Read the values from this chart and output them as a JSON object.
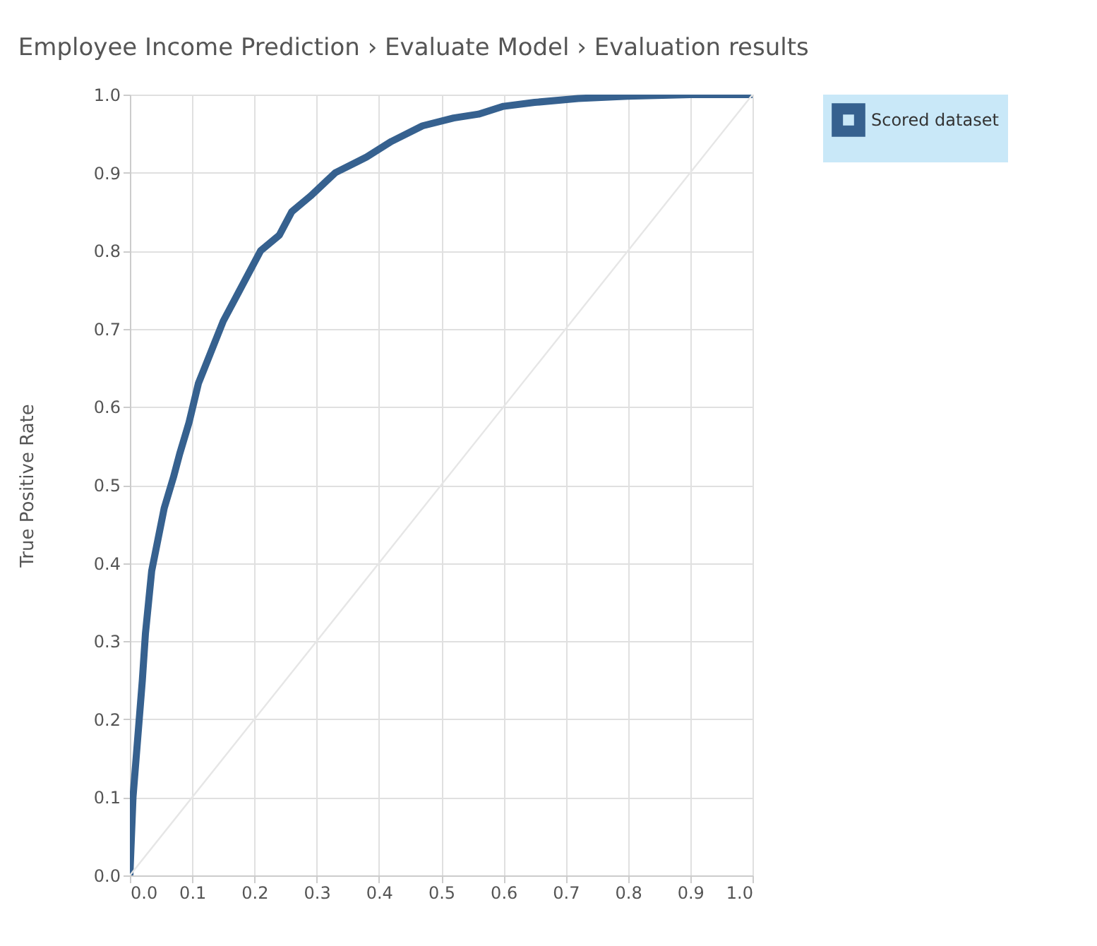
{
  "chart_data": {
    "type": "line",
    "title": "Employee Income Prediction › Evaluate Model › Evaluation results",
    "ylabel": "True Positive Rate",
    "xlim": [
      0,
      1
    ],
    "ylim": [
      0,
      1
    ],
    "xticks": [
      {
        "value": 0,
        "label": "0.0"
      },
      0.1,
      0.2,
      0.3,
      0.4,
      0.5,
      0.6,
      0.7,
      0.8,
      0.9,
      {
        "value": 1,
        "label": "1.0"
      }
    ],
    "yticks": [
      {
        "value": 0,
        "label": "0.0"
      },
      0.1,
      0.2,
      0.3,
      0.4,
      0.5,
      0.6,
      0.7,
      0.8,
      0.9,
      {
        "value": 1,
        "label": "1.0"
      }
    ],
    "grid": true,
    "legend": "top right",
    "marker": "none",
    "line_style": "solid",
    "series": [
      {
        "name": "Scored dataset",
        "color": "#36618f",
        "x": [
          0,
          0.005,
          0.01,
          0.015,
          0.02,
          0.025,
          0.03,
          0.035,
          0.045,
          0.055,
          0.07,
          0.08,
          0.095,
          0.11,
          0.12,
          0.135,
          0.15,
          0.17,
          0.19,
          0.21,
          0.24,
          0.26,
          0.29,
          0.33,
          0.38,
          0.42,
          0.47,
          0.52,
          0.56,
          0.6,
          0.65,
          0.72,
          0.8,
          0.9,
          1.0
        ],
        "values": [
          0,
          0.1,
          0.15,
          0.2,
          0.25,
          0.31,
          0.35,
          0.39,
          0.43,
          0.47,
          0.51,
          0.54,
          0.58,
          0.63,
          0.65,
          0.68,
          0.71,
          0.74,
          0.77,
          0.8,
          0.82,
          0.85,
          0.87,
          0.9,
          0.92,
          0.94,
          0.96,
          0.97,
          0.975,
          0.985,
          0.99,
          0.995,
          0.998,
          1.0,
          1.0
        ]
      },
      {
        "color": "#e6e6e6",
        "x": [
          0,
          1
        ],
        "values": [
          0,
          1
        ]
      }
    ]
  }
}
